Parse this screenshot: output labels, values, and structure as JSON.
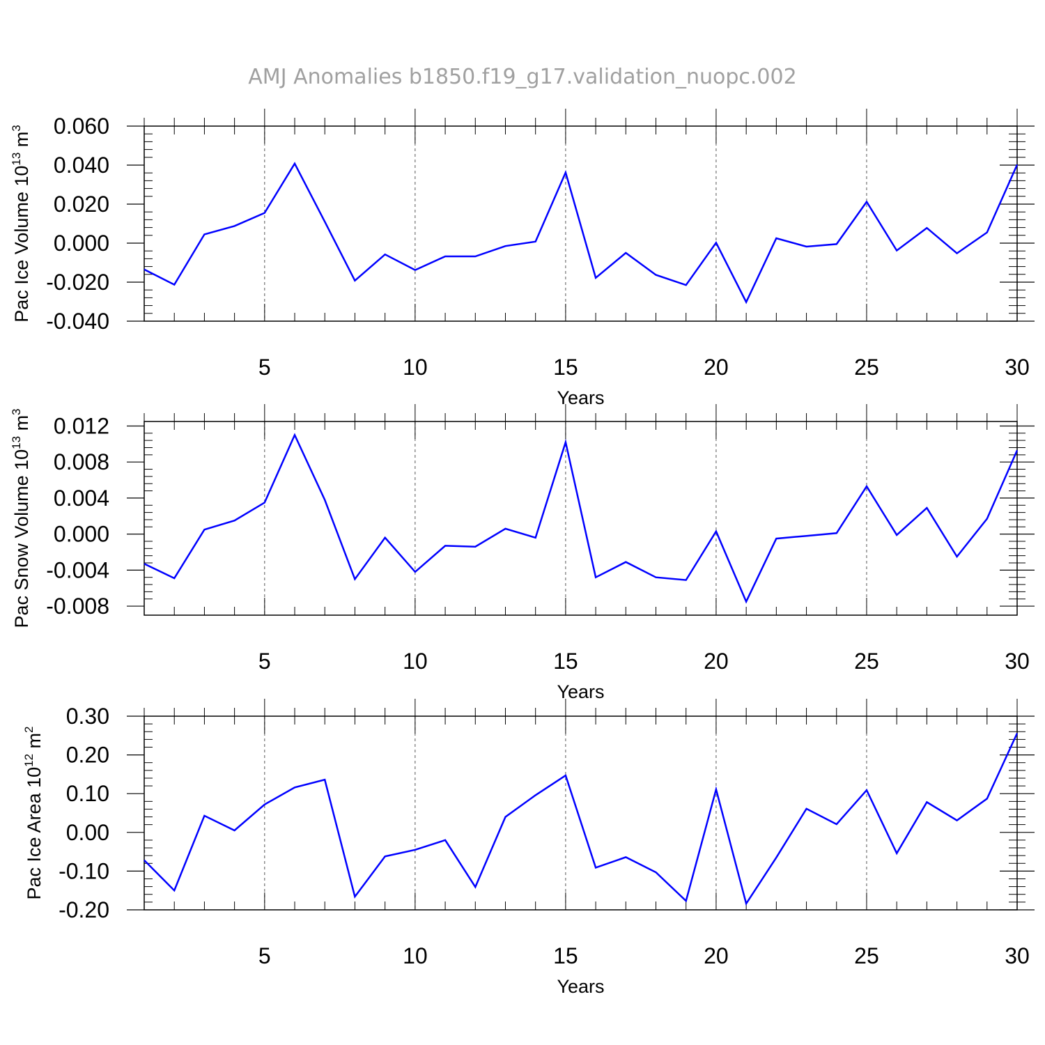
{
  "title": "AMJ Anomalies b1850.f19_g17.validation_nuopc.002",
  "colors": {
    "line": "#0000ff",
    "axis": "#000000",
    "grid": "#555555",
    "title": "#a0a0a0"
  },
  "chart_data": [
    {
      "type": "line",
      "ylabel_main": "Pac Ice Volume 10",
      "ylabel_exp": "13",
      "ylabel_unit": " m",
      "ylabel_unit_exp": "3",
      "xlabel": "Years",
      "xlim": [
        1,
        30
      ],
      "ylim": [
        -0.04,
        0.06
      ],
      "yticks": [
        -0.04,
        -0.02,
        0.0,
        0.02,
        0.04,
        0.06
      ],
      "ytick_labels": [
        "-0.040",
        "-0.020",
        "0.000",
        "0.020",
        "0.040",
        "0.060"
      ],
      "xticks": [
        5,
        10,
        15,
        20,
        25,
        30
      ],
      "xtick_labels": [
        "5",
        "10",
        "15",
        "20",
        "25",
        "30"
      ],
      "x": [
        1,
        2,
        3,
        4,
        5,
        6,
        7,
        8,
        9,
        10,
        11,
        12,
        13,
        14,
        15,
        16,
        17,
        18,
        19,
        20,
        21,
        22,
        23,
        24,
        25,
        26,
        27,
        28,
        29,
        30
      ],
      "values": [
        -0.0135,
        -0.0213,
        0.0045,
        0.0088,
        0.0155,
        0.0408,
        0.011,
        -0.0192,
        -0.0058,
        -0.0138,
        -0.0068,
        -0.0068,
        -0.0015,
        0.0008,
        0.0362,
        -0.0178,
        -0.005,
        -0.0163,
        -0.0215,
        0.0002,
        -0.0302,
        0.0025,
        -0.0018,
        -0.0005,
        0.0212,
        -0.0038,
        0.0078,
        -0.0052,
        0.0055,
        0.0402
      ]
    },
    {
      "type": "line",
      "ylabel_main": "Pac Snow Volume 10",
      "ylabel_exp": "13",
      "ylabel_unit": " m",
      "ylabel_unit_exp": "3",
      "xlabel": "Years",
      "xlim": [
        1,
        30
      ],
      "ylim": [
        -0.009,
        0.0125
      ],
      "yticks": [
        -0.008,
        -0.004,
        0.0,
        0.004,
        0.008,
        0.012
      ],
      "ytick_labels": [
        "-0.008",
        "-0.004",
        "0.000",
        "0.004",
        "0.008",
        "0.012"
      ],
      "xticks": [
        5,
        10,
        15,
        20,
        25,
        30
      ],
      "xtick_labels": [
        "5",
        "10",
        "15",
        "20",
        "25",
        "30"
      ],
      "x": [
        1,
        2,
        3,
        4,
        5,
        6,
        7,
        8,
        9,
        10,
        11,
        12,
        13,
        14,
        15,
        16,
        17,
        18,
        19,
        20,
        21,
        22,
        23,
        24,
        25,
        26,
        27,
        28,
        29,
        30
      ],
      "values": [
        -0.0033,
        -0.0049,
        0.0005,
        0.0015,
        0.0035,
        0.011,
        0.0038,
        -0.005,
        -0.0004,
        -0.0042,
        -0.0013,
        -0.0014,
        0.0006,
        -0.0004,
        0.0102,
        -0.0048,
        -0.0031,
        -0.0048,
        -0.0051,
        0.0003,
        -0.0075,
        -0.0005,
        -0.0002,
        0.0001,
        0.0053,
        -0.0001,
        0.0029,
        -0.0025,
        0.0017,
        0.0093
      ]
    },
    {
      "type": "line",
      "ylabel_main": "Pac Ice Area 10",
      "ylabel_exp": "12",
      "ylabel_unit": " m",
      "ylabel_unit_exp": "2",
      "xlabel": "Years",
      "xlim": [
        1,
        30
      ],
      "ylim": [
        -0.2,
        0.3
      ],
      "yticks": [
        -0.2,
        -0.1,
        0.0,
        0.1,
        0.2,
        0.3
      ],
      "ytick_labels": [
        "-0.20",
        "-0.10",
        "0.00",
        "0.10",
        "0.20",
        "0.30"
      ],
      "xticks": [
        5,
        10,
        15,
        20,
        25,
        30
      ],
      "xtick_labels": [
        "5",
        "10",
        "15",
        "20",
        "25",
        "30"
      ],
      "x": [
        1,
        2,
        3,
        4,
        5,
        6,
        7,
        8,
        9,
        10,
        11,
        12,
        13,
        14,
        15,
        16,
        17,
        18,
        19,
        20,
        21,
        22,
        23,
        24,
        25,
        26,
        27,
        28,
        29,
        30
      ],
      "values": [
        -0.072,
        -0.15,
        0.043,
        0.005,
        0.072,
        0.116,
        0.136,
        -0.166,
        -0.062,
        -0.045,
        -0.02,
        -0.141,
        0.04,
        0.096,
        0.147,
        -0.091,
        -0.064,
        -0.103,
        -0.177,
        0.111,
        -0.184,
        -0.065,
        0.061,
        0.021,
        0.109,
        -0.054,
        0.078,
        0.031,
        0.087,
        0.256
      ]
    }
  ]
}
